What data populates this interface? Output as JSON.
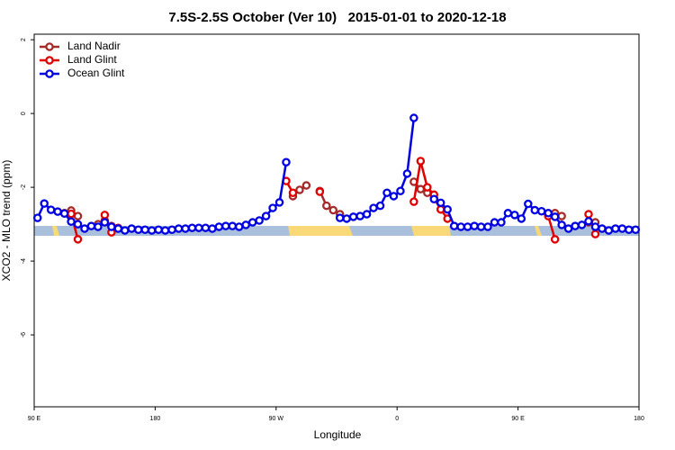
{
  "chart_data": {
    "type": "line",
    "title": "7.5S-2.5S October (Ver 10)   2015-01-01 to 2020-12-18",
    "x_label": "Longitude",
    "y_label": "XCO2 - MLO trend (ppm)",
    "xlim": [
      90,
      540
    ],
    "xticks": [
      {
        "value": 90,
        "label": "90 E"
      },
      {
        "value": 180,
        "label": "180"
      },
      {
        "value": 270,
        "label": "90 W"
      },
      {
        "value": 360,
        "label": "0"
      },
      {
        "value": 450,
        "label": "90 E"
      },
      {
        "value": 540,
        "label": "180"
      }
    ],
    "ylim": [
      -7.95,
      2.15
    ],
    "yticks": [
      2,
      0,
      -2,
      -4,
      -6
    ],
    "legend": "top-left",
    "x": [
      92.5,
      97.5,
      102.5,
      107.5,
      112.5,
      117.5,
      122.5,
      127.5,
      132.5,
      137.5,
      142.5,
      147.5,
      152.5,
      157.5,
      162.5,
      167.5,
      172.5,
      177.5,
      182.5,
      187.5,
      192.5,
      197.5,
      202.5,
      207.5,
      212.5,
      217.5,
      222.5,
      227.5,
      232.5,
      237.5,
      242.5,
      247.5,
      252.5,
      257.5,
      262.5,
      267.5,
      272.5,
      277.5,
      282.5,
      287.5,
      292.5,
      297.5,
      302.5,
      307.5,
      312.5,
      317.5,
      322.5,
      327.5,
      332.5,
      337.5,
      342.5,
      347.5,
      352.5,
      357.5,
      362.5,
      367.5,
      372.5,
      377.5,
      382.5,
      387.5,
      392.5,
      397.5,
      402.5,
      407.5,
      412.5,
      417.5,
      422.5,
      427.5,
      432.5,
      437.5,
      442.5,
      447.5,
      452.5,
      457.5,
      462.5,
      467.5,
      472.5,
      477.5,
      482.5,
      487.5,
      492.5,
      497.5,
      502.5,
      507.5,
      512.5,
      517.5,
      522.5,
      527.5,
      532.5,
      537.5
    ],
    "series": [
      {
        "name": "Land Nadir",
        "color": "#a52a2a",
        "values": [
          null,
          null,
          null,
          null,
          -2.7,
          -2.63,
          -2.78,
          null,
          null,
          -3.0,
          -2.9,
          -3.05,
          null,
          null,
          null,
          null,
          null,
          null,
          null,
          null,
          null,
          null,
          null,
          null,
          null,
          null,
          null,
          null,
          null,
          null,
          null,
          null,
          null,
          null,
          null,
          null,
          null,
          null,
          -2.24,
          -2.07,
          -1.95,
          null,
          -2.1,
          -2.5,
          -2.62,
          -2.73,
          null,
          null,
          null,
          null,
          null,
          null,
          null,
          null,
          null,
          null,
          -1.85,
          -2.05,
          -2.15,
          -2.3,
          -2.6,
          null,
          null,
          null,
          null,
          null,
          null,
          null,
          null,
          null,
          null,
          null,
          null,
          null,
          null,
          null,
          -2.75,
          -2.7,
          -2.78,
          null,
          null,
          null,
          -2.95,
          -2.95,
          null,
          null,
          null,
          null,
          null,
          null
        ]
      },
      {
        "name": "Land Glint",
        "color": "#e00000",
        "values": [
          null,
          null,
          null,
          null,
          null,
          -2.72,
          -3.41,
          null,
          null,
          null,
          -2.75,
          -3.22,
          -3.1,
          null,
          null,
          null,
          null,
          null,
          null,
          null,
          null,
          null,
          null,
          null,
          null,
          null,
          null,
          null,
          null,
          null,
          null,
          null,
          null,
          null,
          null,
          null,
          null,
          -1.83,
          -2.15,
          null,
          null,
          null,
          -2.12,
          null,
          null,
          null,
          null,
          null,
          null,
          null,
          null,
          null,
          null,
          null,
          null,
          null,
          -2.39,
          -1.29,
          -2.0,
          -2.2,
          -2.6,
          -2.85,
          null,
          null,
          null,
          null,
          null,
          null,
          null,
          null,
          null,
          null,
          null,
          null,
          null,
          null,
          -2.78,
          -3.41,
          null,
          null,
          null,
          null,
          -2.73,
          -3.27,
          null,
          null,
          null,
          null,
          null,
          null
        ]
      },
      {
        "name": "Ocean Glint",
        "color": "#0000e0",
        "values": [
          -2.83,
          -2.44,
          -2.61,
          -2.66,
          -2.71,
          -2.93,
          -3.0,
          -3.12,
          -3.05,
          -3.07,
          -2.95,
          -3.07,
          -3.12,
          -3.17,
          -3.12,
          -3.15,
          -3.15,
          -3.17,
          -3.15,
          -3.17,
          -3.15,
          -3.12,
          -3.12,
          -3.1,
          -3.1,
          -3.1,
          -3.12,
          -3.07,
          -3.05,
          -3.05,
          -3.07,
          -3.02,
          -2.95,
          -2.9,
          -2.78,
          -2.56,
          -2.41,
          -1.32,
          null,
          null,
          null,
          null,
          null,
          null,
          null,
          -2.83,
          -2.85,
          -2.8,
          -2.78,
          -2.73,
          -2.56,
          -2.5,
          -2.15,
          -2.24,
          -2.1,
          -1.63,
          -0.12,
          null,
          null,
          -2.32,
          -2.42,
          -2.6,
          -3.05,
          -3.07,
          -3.07,
          -3.05,
          -3.07,
          -3.07,
          -2.95,
          -2.95,
          -2.7,
          -2.75,
          -2.85,
          -2.45,
          -2.62,
          -2.65,
          -2.7,
          -2.8,
          -3.02,
          -3.12,
          -3.05,
          -3.02,
          -2.92,
          -3.07,
          -3.12,
          -3.17,
          -3.12,
          -3.12,
          -3.15,
          -3.15
        ]
      }
    ]
  }
}
